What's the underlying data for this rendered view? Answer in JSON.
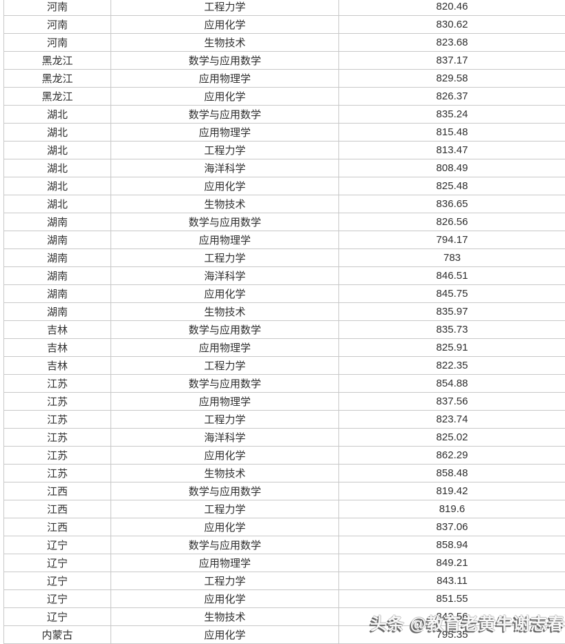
{
  "colors": {
    "grid": "#c8c8c8",
    "text": "#2e2e2e",
    "background": "#ffffff"
  },
  "watermark": {
    "text": "头条 @教育老黄牛谢志春"
  },
  "table": {
    "rows": [
      {
        "province": "河南",
        "major": "工程力学",
        "score": "820.46"
      },
      {
        "province": "河南",
        "major": "应用化学",
        "score": "830.62"
      },
      {
        "province": "河南",
        "major": "生物技术",
        "score": "823.68"
      },
      {
        "province": "黑龙江",
        "major": "数学与应用数学",
        "score": "837.17"
      },
      {
        "province": "黑龙江",
        "major": "应用物理学",
        "score": "829.58"
      },
      {
        "province": "黑龙江",
        "major": "应用化学",
        "score": "826.37"
      },
      {
        "province": "湖北",
        "major": "数学与应用数学",
        "score": "835.24"
      },
      {
        "province": "湖北",
        "major": "应用物理学",
        "score": "815.48"
      },
      {
        "province": "湖北",
        "major": "工程力学",
        "score": "813.47"
      },
      {
        "province": "湖北",
        "major": "海洋科学",
        "score": "808.49"
      },
      {
        "province": "湖北",
        "major": "应用化学",
        "score": "825.48"
      },
      {
        "province": "湖北",
        "major": "生物技术",
        "score": "836.65"
      },
      {
        "province": "湖南",
        "major": "数学与应用数学",
        "score": "826.56"
      },
      {
        "province": "湖南",
        "major": "应用物理学",
        "score": "794.17"
      },
      {
        "province": "湖南",
        "major": "工程力学",
        "score": "783"
      },
      {
        "province": "湖南",
        "major": "海洋科学",
        "score": "846.51"
      },
      {
        "province": "湖南",
        "major": "应用化学",
        "score": "845.75"
      },
      {
        "province": "湖南",
        "major": "生物技术",
        "score": "835.97"
      },
      {
        "province": "吉林",
        "major": "数学与应用数学",
        "score": "835.73"
      },
      {
        "province": "吉林",
        "major": "应用物理学",
        "score": "825.91"
      },
      {
        "province": "吉林",
        "major": "工程力学",
        "score": "822.35"
      },
      {
        "province": "江苏",
        "major": "数学与应用数学",
        "score": "854.88"
      },
      {
        "province": "江苏",
        "major": "应用物理学",
        "score": "837.56"
      },
      {
        "province": "江苏",
        "major": "工程力学",
        "score": "823.74"
      },
      {
        "province": "江苏",
        "major": "海洋科学",
        "score": "825.02"
      },
      {
        "province": "江苏",
        "major": "应用化学",
        "score": "862.29"
      },
      {
        "province": "江苏",
        "major": "生物技术",
        "score": "858.48"
      },
      {
        "province": "江西",
        "major": "数学与应用数学",
        "score": "819.42"
      },
      {
        "province": "江西",
        "major": "工程力学",
        "score": "819.6"
      },
      {
        "province": "江西",
        "major": "应用化学",
        "score": "837.06"
      },
      {
        "province": "辽宁",
        "major": "数学与应用数学",
        "score": "858.94"
      },
      {
        "province": "辽宁",
        "major": "应用物理学",
        "score": "849.21"
      },
      {
        "province": "辽宁",
        "major": "工程力学",
        "score": "843.11"
      },
      {
        "province": "辽宁",
        "major": "应用化学",
        "score": "851.55"
      },
      {
        "province": "辽宁",
        "major": "生物技术",
        "score": "843.56"
      },
      {
        "province": "内蒙古",
        "major": "应用化学",
        "score": "795.35"
      }
    ]
  }
}
